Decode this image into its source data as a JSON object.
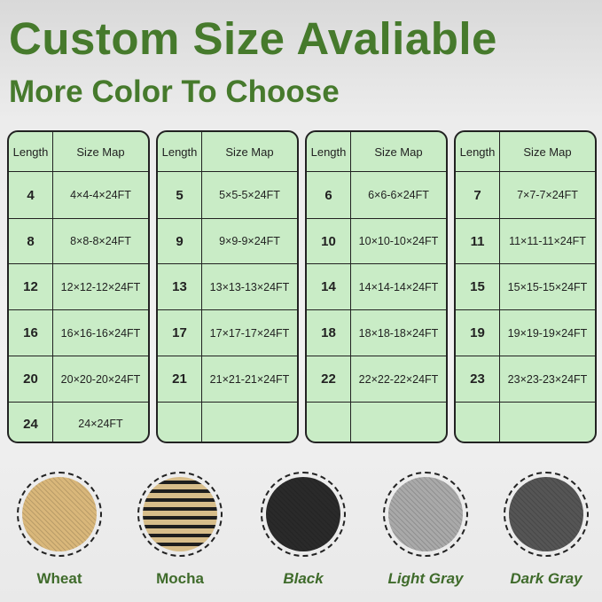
{
  "header": {
    "title": "Custom Size Avaliable",
    "subtitle": "More Color To Choose"
  },
  "tables": [
    {
      "headers": [
        "Length",
        "Size Map"
      ],
      "rows": [
        [
          "4",
          "4×4-4×24FT"
        ],
        [
          "8",
          "8×8-8×24FT"
        ],
        [
          "12",
          "12×12-12×24FT"
        ],
        [
          "16",
          "16×16-16×24FT"
        ],
        [
          "20",
          "20×20-20×24FT"
        ],
        [
          "24",
          "24×24FT"
        ]
      ]
    },
    {
      "headers": [
        "Length",
        "Size Map"
      ],
      "rows": [
        [
          "5",
          "5×5-5×24FT"
        ],
        [
          "9",
          "9×9-9×24FT"
        ],
        [
          "13",
          "13×13-13×24FT"
        ],
        [
          "17",
          "17×17-17×24FT"
        ],
        [
          "21",
          "21×21-21×24FT"
        ],
        [
          "",
          ""
        ]
      ]
    },
    {
      "headers": [
        "Length",
        "Size Map"
      ],
      "rows": [
        [
          "6",
          "6×6-6×24FT"
        ],
        [
          "10",
          "10×10-10×24FT"
        ],
        [
          "14",
          "14×14-14×24FT"
        ],
        [
          "18",
          "18×18-18×24FT"
        ],
        [
          "22",
          "22×22-22×24FT"
        ],
        [
          "",
          ""
        ]
      ]
    },
    {
      "headers": [
        "Length",
        "Size Map"
      ],
      "rows": [
        [
          "7",
          "7×7-7×24FT"
        ],
        [
          "11",
          "11×11-11×24FT"
        ],
        [
          "15",
          "15×15-15×24FT"
        ],
        [
          "19",
          "19×19-19×24FT"
        ],
        [
          "23",
          "23×23-23×24FT"
        ],
        [
          "",
          ""
        ]
      ]
    }
  ],
  "colors": [
    {
      "name": "Wheat",
      "swatch": "#d9b77a",
      "italic": false
    },
    {
      "name": "Mocha",
      "swatch": "#8a7552",
      "italic": false
    },
    {
      "name": "Black",
      "swatch": "#2a2a2a",
      "italic": true
    },
    {
      "name": "Light Gray",
      "swatch": "#a9a9a9",
      "italic": true
    },
    {
      "name": "Dark Gray",
      "swatch": "#555555",
      "italic": true
    }
  ],
  "theme": {
    "accent": "#467a2c",
    "table_bg": "#c9ecc6"
  }
}
